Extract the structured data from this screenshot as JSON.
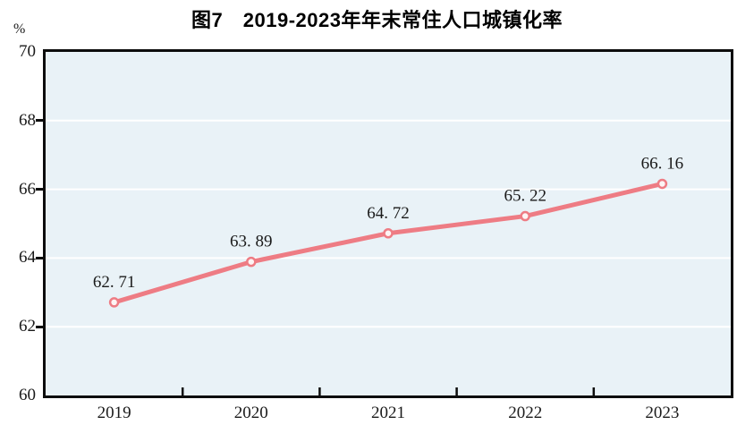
{
  "chart_data": {
    "type": "line",
    "title": "图7　2019-2023年年末常住人口城镇化率",
    "categories": [
      "2019",
      "2020",
      "2021",
      "2022",
      "2023"
    ],
    "values": [
      62.71,
      63.89,
      64.72,
      65.22,
      66.16
    ],
    "point_labels": [
      "62. 71",
      "63. 89",
      "64. 72",
      "65. 22",
      "66. 16"
    ],
    "xlabel": "",
    "ylabel": "%",
    "ylim": [
      60,
      70
    ],
    "y_ticks": [
      60,
      62,
      64,
      66,
      68,
      70
    ],
    "grid": true,
    "legend": "none",
    "colors": {
      "line": "#ee7c84",
      "marker_fill": "#fdf4f4",
      "plot_bg": "#e9f2f7",
      "gridline": "#ffffff",
      "axis": "#0d0d0d",
      "text": "#1a1a1a"
    }
  }
}
